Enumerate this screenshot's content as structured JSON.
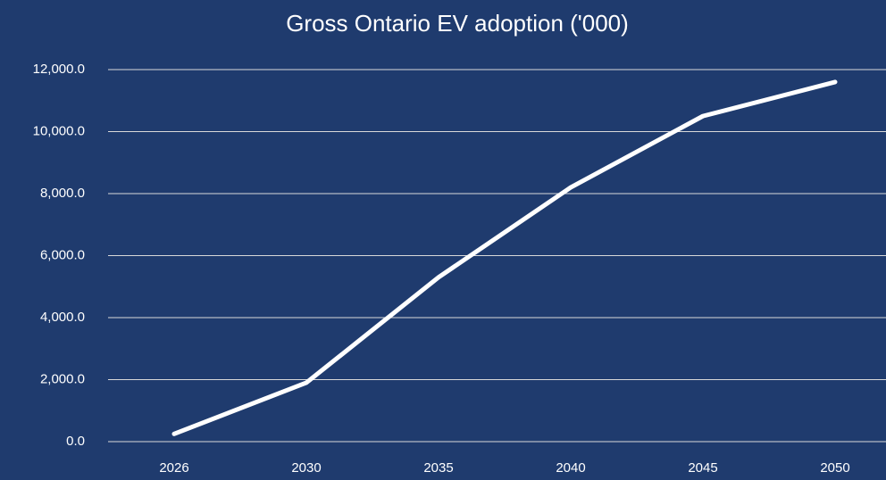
{
  "chart_data": {
    "type": "line",
    "title": "Gross Ontario EV adoption ('000)",
    "categories": [
      "2026",
      "2030",
      "2035",
      "2040",
      "2045",
      "2050"
    ],
    "series": [
      {
        "name": "Gross Ontario EV adoption",
        "color": "#ffffff",
        "values": [
          250,
          1900,
          5300,
          8200,
          10500,
          11600
        ]
      }
    ],
    "ylim": [
      0,
      12000
    ],
    "yticks": [
      {
        "value": 0,
        "label": "0.0"
      },
      {
        "value": 2000,
        "label": "2,000.0"
      },
      {
        "value": 4000,
        "label": "4,000.0"
      },
      {
        "value": 6000,
        "label": "6,000.0"
      },
      {
        "value": 8000,
        "label": "8,000.0"
      },
      {
        "value": 10000,
        "label": "10,000.0"
      },
      {
        "value": 12000,
        "label": "12,000.0"
      }
    ],
    "grid": true
  }
}
